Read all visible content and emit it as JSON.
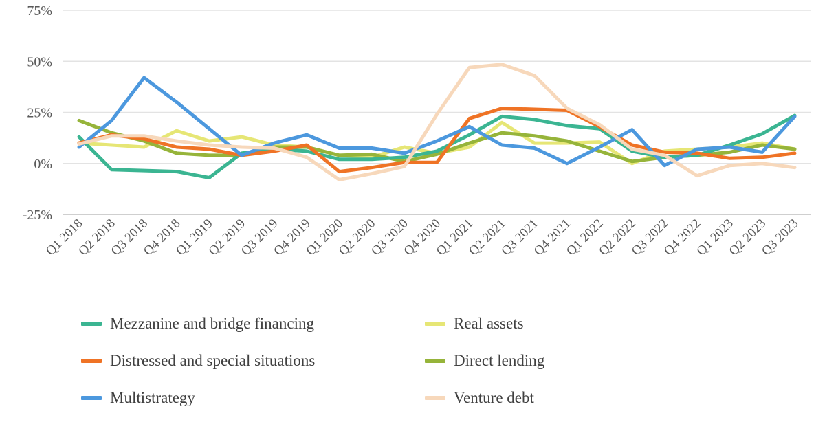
{
  "chart_data": {
    "type": "line",
    "title": "",
    "xlabel": "",
    "ylabel": "",
    "ylim": [
      -25,
      75
    ],
    "yticks": [
      -25,
      0,
      25,
      50,
      75
    ],
    "ytick_labels": [
      "-25%",
      "0%",
      "25%",
      "50%",
      "75%"
    ],
    "grid": true,
    "legend_position": "bottom",
    "categories": [
      "Q1 2018",
      "Q2 2018",
      "Q3 2018",
      "Q4 2018",
      "Q1 2019",
      "Q2 2019",
      "Q3 2019",
      "Q4 2019",
      "Q1 2020",
      "Q2 2020",
      "Q3 2020",
      "Q4 2020",
      "Q1 2021",
      "Q2 2021",
      "Q3 2021",
      "Q4 2021",
      "Q1 2022",
      "Q2 2022",
      "Q3 2022",
      "Q4 2022",
      "Q1 2023",
      "Q2 2023",
      "Q3 2023"
    ],
    "series": [
      {
        "name": "Mezzanine and bridge financing",
        "color": "#3bb592",
        "values": [
          13,
          -3,
          -3.5,
          -4,
          -7,
          5,
          7,
          6,
          2,
          2,
          3,
          6,
          14,
          23,
          21.5,
          18.5,
          17,
          6,
          3,
          4,
          9,
          14.5,
          23.5
        ]
      },
      {
        "name": "Real assets",
        "color": "#e6e675",
        "values": [
          10,
          9,
          8,
          16,
          11,
          13,
          9,
          8,
          4,
          3,
          8,
          5,
          8,
          20,
          10,
          10,
          10.5,
          0,
          6,
          7,
          8,
          10,
          7
        ]
      },
      {
        "name": "Distressed and special situations",
        "color": "#ef7325",
        "values": [
          10,
          14,
          12,
          8,
          7,
          4,
          6,
          9,
          -4,
          -2,
          0.5,
          0.5,
          22,
          27,
          26.5,
          26,
          18,
          9,
          5.5,
          5,
          2.5,
          3,
          5
        ]
      },
      {
        "name": "Direct lending",
        "color": "#96b43a",
        "values": [
          21,
          15,
          11,
          5,
          4,
          4,
          8,
          8,
          4,
          4.5,
          1,
          4.5,
          10,
          15,
          13.5,
          11,
          6,
          1,
          3,
          4,
          5.5,
          9,
          7
        ]
      },
      {
        "name": "Multistrategy",
        "color": "#4c98de",
        "values": [
          8,
          21,
          42,
          30,
          17,
          4,
          10,
          14,
          7.5,
          7.5,
          5,
          11,
          18,
          9,
          7.5,
          0,
          8,
          16.5,
          -1,
          7,
          8,
          5.5,
          23
        ]
      },
      {
        "name": "Venture debt",
        "color": "#f7d8bb",
        "values": [
          9.5,
          13.5,
          13.5,
          11,
          9,
          8,
          7.5,
          3,
          -8,
          -5,
          -1.5,
          24,
          47,
          48.5,
          43,
          27,
          19,
          7,
          4,
          -6,
          -1,
          0,
          -2
        ]
      }
    ]
  },
  "legend_order": [
    0,
    1,
    2,
    3,
    4,
    5
  ]
}
